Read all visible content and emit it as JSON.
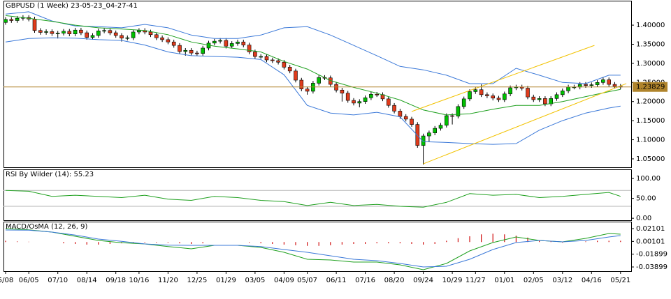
{
  "chart_data": [
    {
      "type": "candlestick",
      "title": "GBPUSD (1 Week) 23-05-23_04-27-41",
      "up_color": "#00c000",
      "down_color": "#e03c1c",
      "wick_color": "#000000",
      "open": [
        1.407,
        1.415,
        1.412,
        1.418,
        1.42,
        1.416,
        1.386,
        1.381,
        1.383,
        1.378,
        1.379,
        1.384,
        1.377,
        1.387,
        1.38,
        1.368,
        1.373,
        1.385,
        1.386,
        1.38,
        1.373,
        1.366,
        1.367,
        1.382,
        1.386,
        1.382,
        1.375,
        1.367,
        1.362,
        1.356,
        1.347,
        1.331,
        1.334,
        1.327,
        1.326,
        1.34,
        1.353,
        1.358,
        1.36,
        1.345,
        1.352,
        1.356,
        1.348,
        1.33,
        1.318,
        1.318,
        1.309,
        1.307,
        1.303,
        1.29,
        1.28,
        1.256,
        1.233,
        1.227,
        1.248,
        1.263,
        1.262,
        1.245,
        1.23,
        1.222,
        1.203,
        1.196,
        1.2,
        1.21,
        1.219,
        1.218,
        1.207,
        1.19,
        1.175,
        1.161,
        1.154,
        1.14,
        1.085,
        1.11,
        1.118,
        1.13,
        1.138,
        1.163,
        1.162,
        1.187,
        1.207,
        1.226,
        1.231,
        1.218,
        1.215,
        1.209,
        1.205,
        1.22,
        1.236,
        1.238,
        1.235,
        1.212,
        1.205,
        1.208,
        1.194,
        1.208,
        1.218,
        1.228,
        1.238,
        1.238,
        1.245,
        1.242,
        1.244,
        1.25,
        1.257,
        1.245,
        1.24
      ],
      "high": [
        1.421,
        1.421,
        1.424,
        1.426,
        1.426,
        1.422,
        1.392,
        1.389,
        1.389,
        1.385,
        1.39,
        1.39,
        1.393,
        1.393,
        1.386,
        1.379,
        1.391,
        1.392,
        1.392,
        1.386,
        1.379,
        1.373,
        1.388,
        1.392,
        1.392,
        1.388,
        1.381,
        1.373,
        1.368,
        1.362,
        1.353,
        1.34,
        1.34,
        1.333,
        1.346,
        1.359,
        1.364,
        1.366,
        1.366,
        1.358,
        1.362,
        1.362,
        1.354,
        1.336,
        1.324,
        1.324,
        1.315,
        1.313,
        1.309,
        1.296,
        1.286,
        1.262,
        1.239,
        1.254,
        1.269,
        1.269,
        1.268,
        1.251,
        1.236,
        1.228,
        1.209,
        1.206,
        1.216,
        1.225,
        1.225,
        1.224,
        1.213,
        1.196,
        1.181,
        1.167,
        1.16,
        1.146,
        1.116,
        1.124,
        1.136,
        1.144,
        1.169,
        1.169,
        1.193,
        1.213,
        1.232,
        1.237,
        1.245,
        1.224,
        1.221,
        1.215,
        1.226,
        1.242,
        1.244,
        1.244,
        1.241,
        1.218,
        1.214,
        1.214,
        1.214,
        1.224,
        1.234,
        1.244,
        1.244,
        1.251,
        1.251,
        1.25,
        1.256,
        1.263,
        1.263,
        1.251,
        1.246
      ],
      "low": [
        1.401,
        1.406,
        1.406,
        1.412,
        1.41,
        1.38,
        1.375,
        1.375,
        1.372,
        1.365,
        1.373,
        1.371,
        1.371,
        1.374,
        1.362,
        1.362,
        1.367,
        1.379,
        1.374,
        1.367,
        1.357,
        1.36,
        1.361,
        1.376,
        1.376,
        1.369,
        1.361,
        1.356,
        1.35,
        1.341,
        1.325,
        1.32,
        1.321,
        1.32,
        1.32,
        1.334,
        1.347,
        1.352,
        1.339,
        1.339,
        1.346,
        1.342,
        1.324,
        1.312,
        1.312,
        1.303,
        1.301,
        1.297,
        1.284,
        1.274,
        1.25,
        1.227,
        1.218,
        1.221,
        1.242,
        1.256,
        1.239,
        1.224,
        1.2,
        1.197,
        1.19,
        1.185,
        1.194,
        1.204,
        1.212,
        1.201,
        1.184,
        1.169,
        1.155,
        1.148,
        1.134,
        1.079,
        1.035,
        1.095,
        1.112,
        1.124,
        1.132,
        1.14,
        1.156,
        1.181,
        1.201,
        1.22,
        1.212,
        1.209,
        1.203,
        1.199,
        1.199,
        1.214,
        1.23,
        1.229,
        1.206,
        1.199,
        1.199,
        1.188,
        1.188,
        1.202,
        1.212,
        1.222,
        1.232,
        1.232,
        1.236,
        1.236,
        1.238,
        1.244,
        1.239,
        1.234,
        1.232
      ],
      "close": [
        1.415,
        1.412,
        1.418,
        1.42,
        1.416,
        1.386,
        1.381,
        1.383,
        1.378,
        1.379,
        1.384,
        1.377,
        1.387,
        1.38,
        1.368,
        1.373,
        1.385,
        1.386,
        1.38,
        1.373,
        1.366,
        1.367,
        1.382,
        1.386,
        1.382,
        1.375,
        1.367,
        1.362,
        1.356,
        1.347,
        1.331,
        1.334,
        1.327,
        1.326,
        1.34,
        1.353,
        1.358,
        1.36,
        1.345,
        1.352,
        1.356,
        1.348,
        1.33,
        1.318,
        1.318,
        1.309,
        1.307,
        1.303,
        1.29,
        1.28,
        1.256,
        1.233,
        1.227,
        1.248,
        1.263,
        1.262,
        1.245,
        1.23,
        1.222,
        1.203,
        1.196,
        1.2,
        1.21,
        1.219,
        1.218,
        1.207,
        1.19,
        1.175,
        1.161,
        1.154,
        1.14,
        1.085,
        1.11,
        1.118,
        1.13,
        1.138,
        1.163,
        1.162,
        1.187,
        1.207,
        1.226,
        1.231,
        1.218,
        1.215,
        1.209,
        1.205,
        1.22,
        1.236,
        1.238,
        1.235,
        1.212,
        1.205,
        1.208,
        1.194,
        1.208,
        1.218,
        1.228,
        1.238,
        1.238,
        1.245,
        1.242,
        1.244,
        1.25,
        1.257,
        1.245,
        1.24,
        1.238
      ],
      "series": [
        {
          "color": "#3a78d8",
          "x": [
            0,
            4,
            8,
            12,
            16,
            20,
            24,
            28,
            32,
            36,
            40,
            44,
            48,
            52,
            56,
            60,
            64,
            68,
            72,
            76,
            80,
            84,
            88,
            92,
            96,
            100,
            104,
            106
          ],
          "values": [
            1.429,
            1.435,
            1.411,
            1.398,
            1.396,
            1.393,
            1.402,
            1.393,
            1.374,
            1.365,
            1.365,
            1.374,
            1.393,
            1.396,
            1.374,
            1.347,
            1.32,
            1.292,
            1.283,
            1.269,
            1.247,
            1.247,
            1.287,
            1.269,
            1.25,
            1.247,
            1.269,
            1.269
          ]
        },
        {
          "color": "#1fa01f",
          "x": [
            0,
            4,
            8,
            12,
            16,
            20,
            24,
            28,
            32,
            36,
            40,
            44,
            48,
            52,
            56,
            60,
            64,
            68,
            72,
            76,
            80,
            84,
            88,
            92,
            96,
            100,
            104,
            106
          ],
          "values": [
            1.425,
            1.418,
            1.41,
            1.4,
            1.393,
            1.39,
            1.386,
            1.375,
            1.356,
            1.345,
            1.338,
            1.33,
            1.305,
            1.285,
            1.255,
            1.237,
            1.222,
            1.204,
            1.178,
            1.165,
            1.168,
            1.18,
            1.19,
            1.19,
            1.2,
            1.213,
            1.226,
            1.232
          ]
        },
        {
          "color": "#3a78d8",
          "x": [
            0,
            4,
            8,
            12,
            16,
            20,
            24,
            28,
            32,
            36,
            40,
            44,
            48,
            52,
            56,
            60,
            64,
            68,
            72,
            76,
            80,
            84,
            88,
            92,
            96,
            100,
            104,
            106
          ],
          "values": [
            1.356,
            1.365,
            1.367,
            1.366,
            1.362,
            1.36,
            1.348,
            1.33,
            1.32,
            1.318,
            1.316,
            1.31,
            1.27,
            1.19,
            1.17,
            1.165,
            1.172,
            1.16,
            1.095,
            1.093,
            1.09,
            1.088,
            1.09,
            1.125,
            1.15,
            1.17,
            1.183,
            1.188
          ]
        }
      ],
      "trendlines": [
        {
          "color": "#f2c200",
          "x": [
            70,
            101.5
          ],
          "values": [
            1.174,
            1.347
          ]
        },
        {
          "color": "#f2c200",
          "x": [
            72,
            107
          ],
          "values": [
            1.037,
            1.247
          ]
        }
      ],
      "price_line": {
        "value": 1.23829,
        "label": "1.23829"
      },
      "price_line_color": "#b0842c",
      "ylim": [
        1.028,
        1.464
      ],
      "yticks": [
        {
          "value": 1.05,
          "label": "1.05000"
        },
        {
          "value": 1.1,
          "label": "1.10000"
        },
        {
          "value": 1.15,
          "label": "1.15000"
        },
        {
          "value": 1.2,
          "label": "1.20000"
        },
        {
          "value": 1.25,
          "label": "1.25000"
        },
        {
          "value": 1.3,
          "label": "1.30000"
        },
        {
          "value": 1.35,
          "label": "1.35000"
        },
        {
          "value": 1.4,
          "label": "1.40000"
        }
      ]
    },
    {
      "type": "line",
      "title": "RSI By Wilder (14): 55.23",
      "series": [
        {
          "color": "#1fa01f",
          "x": [
            0,
            4,
            8,
            12,
            16,
            20,
            24,
            28,
            32,
            36,
            40,
            44,
            48,
            52,
            56,
            60,
            64,
            68,
            72,
            76,
            80,
            84,
            88,
            92,
            96,
            100,
            104,
            106
          ],
          "values": [
            70,
            68,
            55,
            58,
            55,
            52,
            58,
            48,
            45,
            55,
            52,
            45,
            42,
            32,
            40,
            32,
            35,
            30,
            28,
            40,
            62,
            58,
            60,
            52,
            55,
            60,
            65,
            55.23
          ]
        }
      ],
      "levels": [
        70,
        30
      ],
      "level_color": "#b4b4b4",
      "ylim": [
        -5,
        123
      ],
      "yticks": [
        {
          "value": 0,
          "label": "0.00"
        },
        {
          "value": 50,
          "label": "50.00"
        },
        {
          "value": 100,
          "label": "100.00"
        }
      ]
    },
    {
      "type": "macd",
      "title": "MACD/OsMA (12, 26, 9)",
      "series": [
        {
          "color": "#1fa01f",
          "x": [
            0,
            4,
            8,
            12,
            16,
            20,
            24,
            28,
            32,
            36,
            40,
            44,
            48,
            52,
            56,
            60,
            64,
            68,
            72,
            76,
            80,
            84,
            88,
            92,
            96,
            100,
            104,
            106
          ],
          "values": [
            0.021,
            0.019,
            0.0156,
            0.009,
            0.0025,
            -0.001,
            -0.003,
            -0.007,
            -0.0106,
            -0.0052,
            -0.0052,
            -0.0084,
            -0.0161,
            -0.027,
            -0.0281,
            -0.0313,
            -0.0313,
            -0.0357,
            -0.0433,
            -0.0335,
            -0.0139,
            -0.0008,
            0.0079,
            0.0025,
            0.0003,
            0.0057,
            0.0134,
            0.0123
          ]
        },
        {
          "color": "#3a78d8",
          "x": [
            0,
            4,
            8,
            12,
            16,
            20,
            24,
            28,
            32,
            36,
            40,
            44,
            48,
            52,
            56,
            60,
            64,
            68,
            72,
            76,
            80,
            84,
            88,
            92,
            96,
            100,
            104,
            106
          ],
          "values": [
            0.0188,
            0.0185,
            0.0156,
            0.011,
            0.0046,
            0.001,
            -0.003,
            -0.005,
            -0.0052,
            -0.0052,
            -0.0052,
            -0.007,
            -0.0117,
            -0.0161,
            -0.0215,
            -0.027,
            -0.0292,
            -0.0335,
            -0.039,
            -0.0379,
            -0.027,
            -0.0117,
            -0.0008,
            0.0025,
            0.0003,
            0.0025,
            0.0079,
            0.0101
          ]
        }
      ],
      "histogram": {
        "color": "#d01010",
        "x": [
          0,
          2,
          4,
          6,
          8,
          10,
          12,
          14,
          16,
          18,
          20,
          22,
          24,
          26,
          28,
          30,
          32,
          34,
          36,
          38,
          40,
          42,
          44,
          46,
          48,
          50,
          52,
          54,
          56,
          58,
          60,
          62,
          64,
          66,
          68,
          70,
          72,
          74,
          76,
          78,
          80,
          82,
          84,
          86,
          88,
          90,
          92,
          94,
          96,
          98,
          100,
          102,
          104,
          106
        ],
        "values": [
          0.002,
          0.001,
          0.0005,
          0,
          0,
          -0.002,
          -0.003,
          -0.004,
          -0.004,
          -0.003,
          -0.002,
          -0.002,
          -0.001,
          -0.001,
          -0.001,
          -0.002,
          -0.003,
          -0.002,
          0,
          0,
          0,
          -0.001,
          -0.002,
          -0.003,
          -0.004,
          -0.005,
          -0.006,
          -0.006,
          -0.005,
          -0.004,
          -0.003,
          -0.003,
          -0.002,
          -0.002,
          -0.002,
          -0.003,
          -0.004,
          -0.003,
          0.002,
          0.006,
          0.009,
          0.012,
          0.013,
          0.012,
          0.01,
          0.007,
          0.003,
          0.001,
          -0.001,
          0,
          0.001,
          0.002,
          0.002,
          0.002
        ]
      },
      "ylim": [
        -0.0455,
        0.0319
      ],
      "yticks": [
        {
          "value": -0.03899,
          "label": "-0.03899"
        },
        {
          "value": -0.01899,
          "label": "-0.01899"
        },
        {
          "value": 0.00101,
          "label": "0.00101"
        },
        {
          "value": 0.02101,
          "label": "0.02101"
        }
      ],
      "categories": [
        "5/08",
        null,
        null,
        null,
        "06/05",
        null,
        null,
        null,
        null,
        "07/10",
        null,
        null,
        null,
        null,
        "08/14",
        null,
        null,
        null,
        null,
        "09/18",
        null,
        null,
        null,
        "10/16",
        null,
        null,
        null,
        null,
        "11/20",
        null,
        null,
        null,
        null,
        "12/25",
        null,
        null,
        null,
        null,
        "01/29",
        null,
        null,
        null,
        null,
        "03/05",
        null,
        null,
        null,
        null,
        "04/09",
        null,
        null,
        null,
        "05/07",
        null,
        null,
        null,
        null,
        "06/11",
        null,
        null,
        null,
        null,
        "07/16",
        null,
        null,
        null,
        null,
        "08/20",
        null,
        null,
        null,
        null,
        "09/24",
        null,
        null,
        null,
        null,
        "10/29",
        null,
        null,
        null,
        "11/27",
        null,
        null,
        null,
        null,
        "01/01",
        null,
        null,
        null,
        null,
        "02/05",
        null,
        null,
        null,
        null,
        "03/12",
        null,
        null,
        null,
        null,
        "04/16",
        null,
        null,
        null,
        null,
        "05/21"
      ]
    }
  ]
}
